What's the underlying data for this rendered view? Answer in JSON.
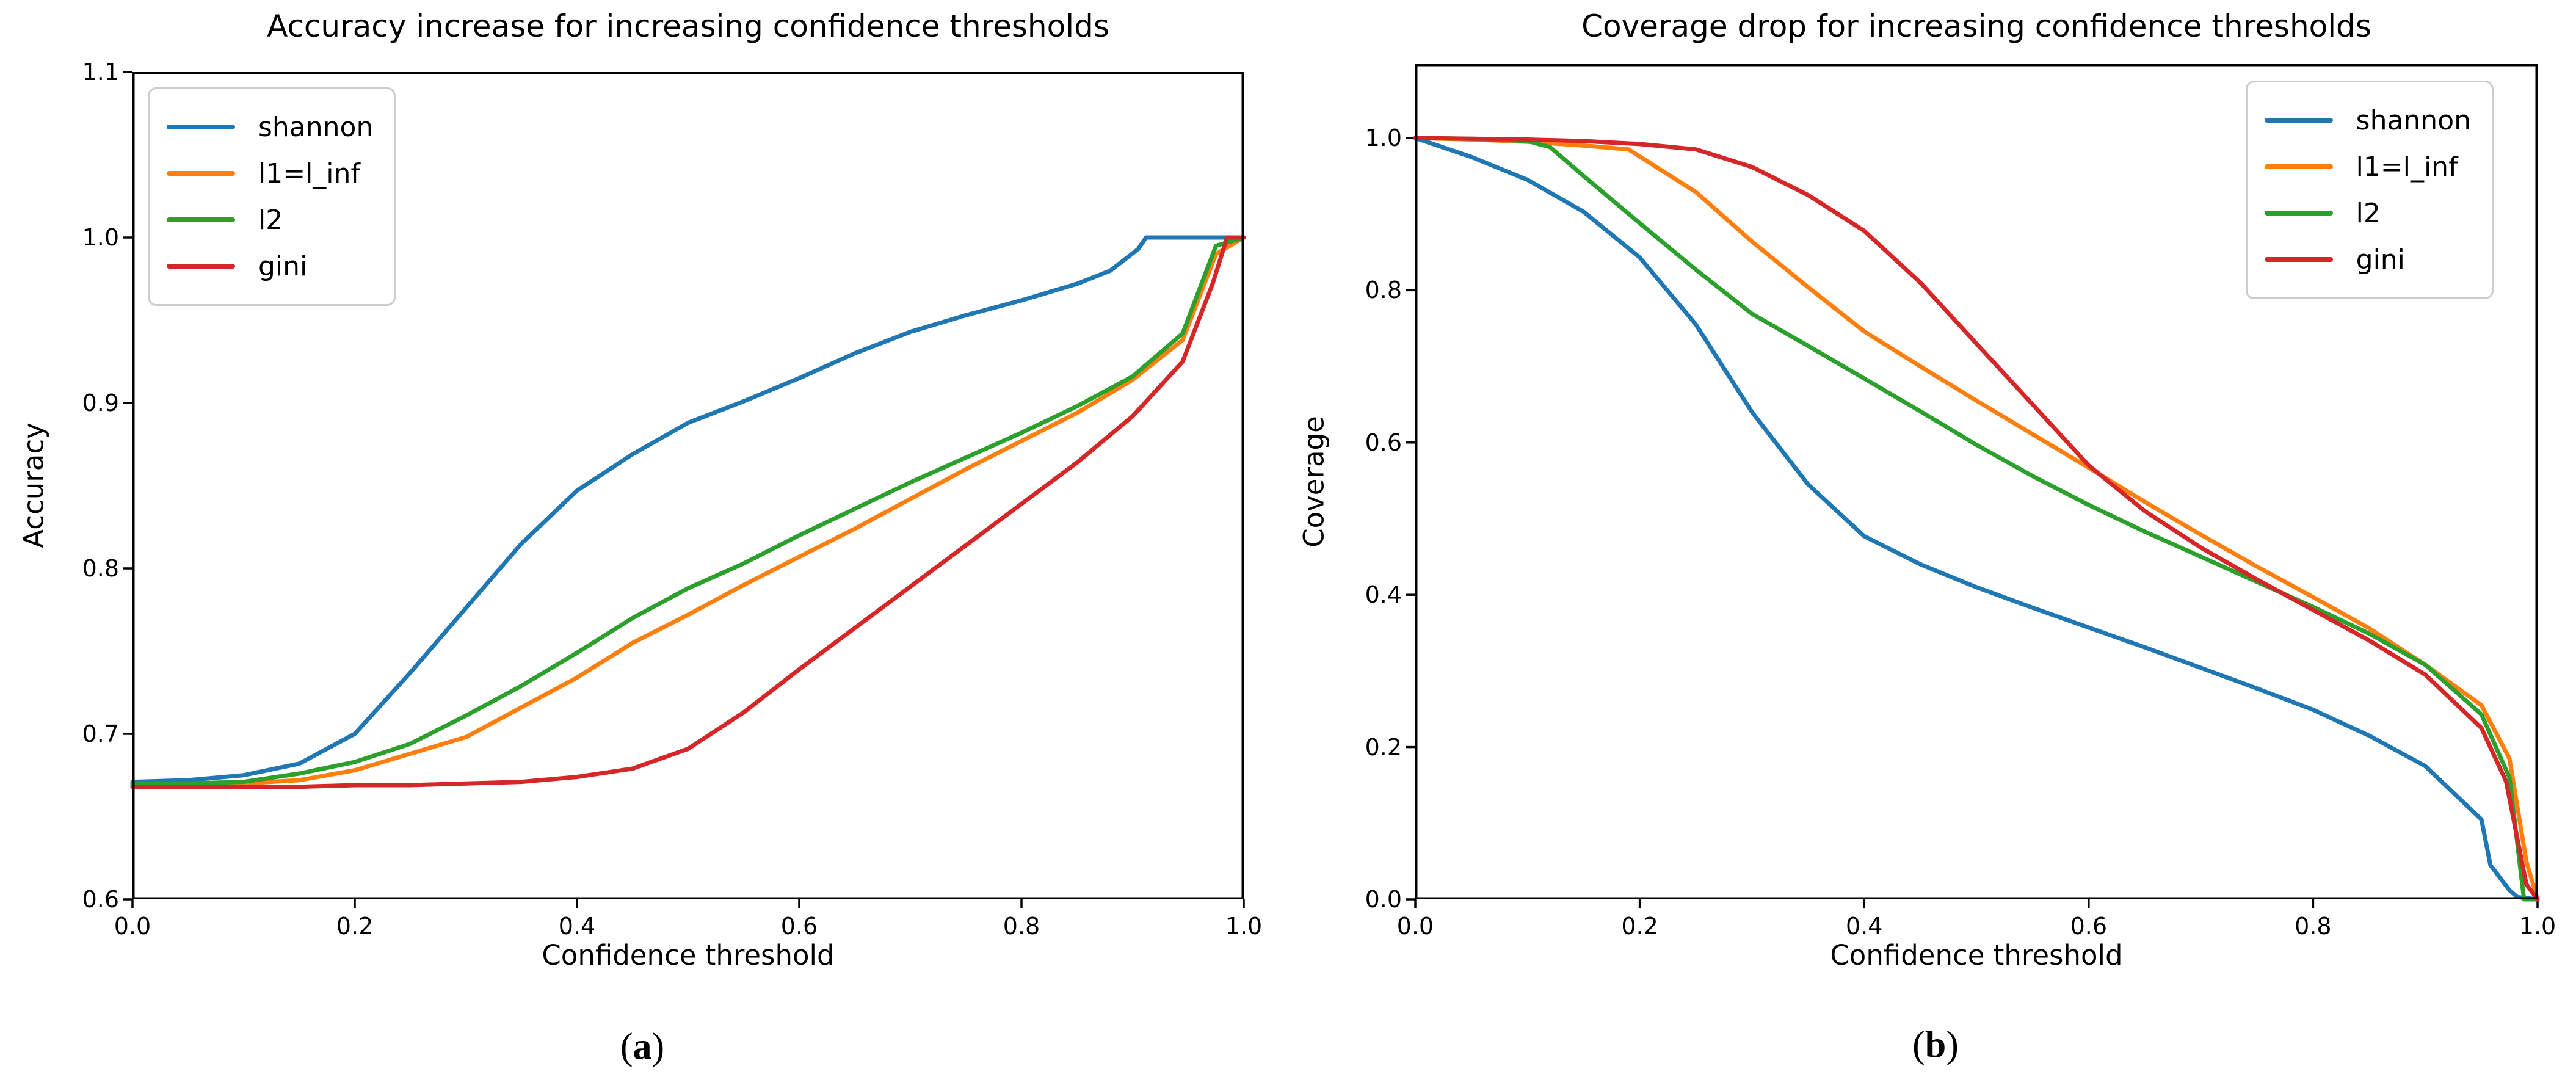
{
  "figure": {
    "background": "#ffffff"
  },
  "chart_data": [
    {
      "type": "line",
      "title": "Accuracy increase for increasing confidence thresholds",
      "xlabel": "Confidence threshold",
      "ylabel": "Accuracy",
      "caption": {
        "open": "(",
        "label": "a",
        "close": ")"
      },
      "xlim": [
        0.0,
        1.0
      ],
      "ylim": [
        0.6,
        1.1
      ],
      "xticks": [
        "0.0",
        "0.2",
        "0.4",
        "0.6",
        "0.8",
        "1.0"
      ],
      "yticks": [
        "0.6",
        "0.7",
        "0.8",
        "0.9",
        "1.0",
        "1.1"
      ],
      "grid": false,
      "legend_position": "upper-left",
      "series": [
        {
          "name": "shannon",
          "color": "#1f77b4",
          "x": [
            0.0,
            0.05,
            0.1,
            0.15,
            0.2,
            0.25,
            0.3,
            0.35,
            0.4,
            0.45,
            0.5,
            0.55,
            0.6,
            0.65,
            0.7,
            0.75,
            0.8,
            0.85,
            0.88,
            0.905,
            0.912,
            1.0
          ],
          "y": [
            0.671,
            0.672,
            0.675,
            0.682,
            0.7,
            0.737,
            0.776,
            0.815,
            0.847,
            0.869,
            0.888,
            0.901,
            0.915,
            0.93,
            0.943,
            0.953,
            0.962,
            0.972,
            0.98,
            0.993,
            1.0,
            1.0
          ]
        },
        {
          "name": "l1=l_inf",
          "color": "#ff7f0e",
          "x": [
            0.0,
            0.05,
            0.1,
            0.15,
            0.2,
            0.25,
            0.3,
            0.35,
            0.4,
            0.45,
            0.5,
            0.55,
            0.6,
            0.65,
            0.7,
            0.75,
            0.8,
            0.85,
            0.9,
            0.945,
            0.975,
            1.0
          ],
          "y": [
            0.669,
            0.669,
            0.67,
            0.672,
            0.678,
            0.688,
            0.698,
            0.716,
            0.734,
            0.755,
            0.772,
            0.79,
            0.807,
            0.824,
            0.842,
            0.86,
            0.877,
            0.894,
            0.914,
            0.938,
            0.99,
            1.0
          ]
        },
        {
          "name": "l2",
          "color": "#2ca02c",
          "x": [
            0.0,
            0.05,
            0.1,
            0.15,
            0.2,
            0.25,
            0.3,
            0.35,
            0.4,
            0.45,
            0.5,
            0.55,
            0.6,
            0.65,
            0.7,
            0.75,
            0.8,
            0.85,
            0.9,
            0.945,
            0.975,
            1.0
          ],
          "y": [
            0.67,
            0.67,
            0.671,
            0.676,
            0.683,
            0.694,
            0.711,
            0.729,
            0.749,
            0.77,
            0.788,
            0.803,
            0.82,
            0.836,
            0.852,
            0.867,
            0.882,
            0.898,
            0.916,
            0.942,
            0.995,
            1.0
          ]
        },
        {
          "name": "gini",
          "color": "#d62728",
          "x": [
            0.0,
            0.05,
            0.1,
            0.15,
            0.2,
            0.25,
            0.3,
            0.35,
            0.4,
            0.45,
            0.5,
            0.55,
            0.6,
            0.65,
            0.7,
            0.75,
            0.8,
            0.85,
            0.9,
            0.945,
            0.972,
            0.985,
            1.0
          ],
          "y": [
            0.668,
            0.668,
            0.668,
            0.668,
            0.669,
            0.669,
            0.67,
            0.671,
            0.674,
            0.679,
            0.691,
            0.713,
            0.739,
            0.764,
            0.789,
            0.814,
            0.839,
            0.864,
            0.892,
            0.925,
            0.972,
            1.0,
            1.0
          ]
        }
      ]
    },
    {
      "type": "line",
      "title": "Coverage drop for increasing confidence thresholds",
      "xlabel": "Confidence threshold",
      "ylabel": "Coverage",
      "caption": {
        "open": "(",
        "label": "b",
        "close": ")"
      },
      "xlim": [
        0.0,
        1.0
      ],
      "ylim": [
        0.0,
        1.097
      ],
      "xticks": [
        "0.0",
        "0.2",
        "0.4",
        "0.6",
        "0.8",
        "1.0"
      ],
      "yticks": [
        "0.0",
        "0.2",
        "0.4",
        "0.6",
        "0.8",
        "1.0"
      ],
      "grid": false,
      "legend_position": "upper-right",
      "series": [
        {
          "name": "shannon",
          "color": "#1f77b4",
          "x": [
            0.0,
            0.05,
            0.1,
            0.15,
            0.2,
            0.25,
            0.3,
            0.35,
            0.4,
            0.45,
            0.5,
            0.55,
            0.6,
            0.65,
            0.7,
            0.75,
            0.8,
            0.85,
            0.9,
            0.95,
            0.958,
            0.975,
            0.982,
            1.0
          ],
          "y": [
            1.0,
            0.975,
            0.945,
            0.903,
            0.843,
            0.755,
            0.64,
            0.545,
            0.477,
            0.44,
            0.41,
            0.383,
            0.357,
            0.331,
            0.304,
            0.277,
            0.249,
            0.215,
            0.175,
            0.105,
            0.045,
            0.012,
            0.003,
            0.0
          ]
        },
        {
          "name": "l1=l_inf",
          "color": "#ff7f0e",
          "x": [
            0.0,
            0.05,
            0.1,
            0.15,
            0.19,
            0.25,
            0.3,
            0.35,
            0.4,
            0.45,
            0.5,
            0.55,
            0.6,
            0.65,
            0.7,
            0.75,
            0.8,
            0.85,
            0.9,
            0.95,
            0.975,
            0.99,
            1.0
          ],
          "y": [
            1.0,
            0.998,
            0.995,
            0.99,
            0.985,
            0.929,
            0.864,
            0.804,
            0.746,
            0.7,
            0.655,
            0.611,
            0.567,
            0.522,
            0.479,
            0.437,
            0.397,
            0.356,
            0.308,
            0.255,
            0.185,
            0.05,
            0.0
          ]
        },
        {
          "name": "l2",
          "color": "#2ca02c",
          "x": [
            0.0,
            0.05,
            0.1,
            0.12,
            0.15,
            0.2,
            0.25,
            0.3,
            0.35,
            0.4,
            0.45,
            0.5,
            0.55,
            0.6,
            0.65,
            0.7,
            0.75,
            0.8,
            0.85,
            0.9,
            0.95,
            0.975,
            0.988,
            1.0
          ],
          "y": [
            1.0,
            0.999,
            0.996,
            0.988,
            0.95,
            0.888,
            0.827,
            0.769,
            0.727,
            0.684,
            0.641,
            0.597,
            0.556,
            0.518,
            0.483,
            0.45,
            0.417,
            0.384,
            0.349,
            0.308,
            0.243,
            0.16,
            0.0,
            0.0
          ]
        },
        {
          "name": "gini",
          "color": "#d62728",
          "x": [
            0.0,
            0.05,
            0.1,
            0.15,
            0.2,
            0.25,
            0.3,
            0.35,
            0.4,
            0.45,
            0.5,
            0.55,
            0.6,
            0.65,
            0.7,
            0.75,
            0.8,
            0.85,
            0.9,
            0.95,
            0.972,
            0.99,
            1.0
          ],
          "y": [
            1.0,
            0.999,
            0.998,
            0.996,
            0.992,
            0.985,
            0.962,
            0.925,
            0.878,
            0.81,
            0.73,
            0.65,
            0.57,
            0.51,
            0.462,
            0.42,
            0.38,
            0.34,
            0.295,
            0.225,
            0.155,
            0.02,
            0.0
          ]
        }
      ]
    }
  ]
}
